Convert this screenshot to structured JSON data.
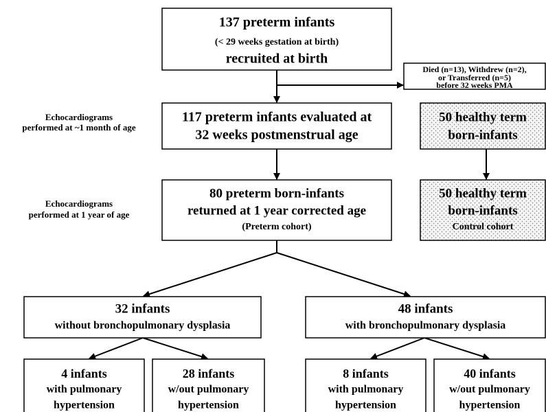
{
  "nodes": [
    {
      "lines": [
        "137 preterm infants",
        "(< 29 weeks gestation at birth)",
        "recruited at birth"
      ]
    },
    {
      "lines": [
        "Died (n=13), Withdrew (n=2),",
        "or Transferred (n=5)",
        "before 32 weeks PMA"
      ]
    },
    {
      "lines": [
        "117 preterm infants evaluated at",
        "32 weeks postmenstrual age"
      ]
    },
    {
      "lines": [
        "50 healthy term",
        "born-infants"
      ]
    },
    {
      "lines": [
        "80 preterm born-infants",
        "returned at 1 year corrected age",
        "(Preterm cohort)"
      ]
    },
    {
      "lines": [
        "50 healthy term",
        "born-infants",
        "Control cohort"
      ]
    },
    {
      "lines": [
        "32 infants",
        "without bronchopulmonary dysplasia"
      ]
    },
    {
      "lines": [
        "48 infants",
        "with bronchopulmonary dysplasia"
      ]
    },
    {
      "lines": [
        "4 infants",
        "with pulmonary",
        "hypertension"
      ]
    },
    {
      "lines": [
        "28 infants",
        "w/out pulmonary",
        "hypertension"
      ]
    },
    {
      "lines": [
        "8 infants",
        "with pulmonary",
        "hypertension"
      ]
    },
    {
      "lines": [
        "40 infants",
        "w/out pulmonary",
        "hypertension"
      ]
    }
  ],
  "side_labels": [
    {
      "lines": [
        "Echocardiograms",
        "performed at ~1 month of age"
      ]
    },
    {
      "lines": [
        "Echocardiograms",
        "performed at 1 year of age"
      ]
    }
  ]
}
